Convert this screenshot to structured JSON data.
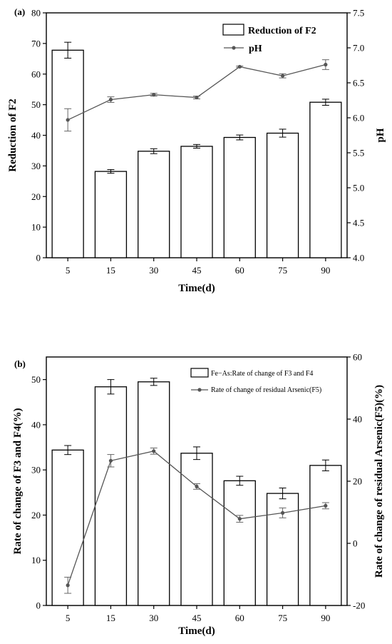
{
  "chart_data": [
    {
      "panel": "(a)",
      "type": "bar+line",
      "categories": [
        "5",
        "15",
        "30",
        "45",
        "60",
        "75",
        "90"
      ],
      "xlabel": "Time(d)",
      "bars": {
        "name": "Reduction of F2",
        "axis": "left",
        "values": [
          67.8,
          28.2,
          34.8,
          36.4,
          39.3,
          40.7,
          50.8
        ],
        "errors": [
          2.6,
          0.6,
          0.8,
          0.6,
          0.8,
          1.3,
          1.0
        ]
      },
      "line": {
        "name": "pH",
        "axis": "right",
        "values": [
          5.97,
          6.26,
          6.33,
          6.29,
          6.73,
          6.6,
          6.76
        ],
        "errors": [
          0.16,
          0.04,
          0.02,
          0.02,
          0.01,
          0.03,
          0.07
        ]
      },
      "left_axis": {
        "label": "Reduction of F2",
        "min": 0,
        "max": 80,
        "ticks": [
          "0",
          "10",
          "20",
          "30",
          "40",
          "50",
          "60",
          "70",
          "80"
        ]
      },
      "right_axis": {
        "label": "pH",
        "min": 4.0,
        "max": 7.5,
        "ticks": [
          "4.0",
          "4.5",
          "5.0",
          "5.5",
          "6.0",
          "6.5",
          "7.0",
          "7.5"
        ]
      },
      "legend_position": "top-right"
    },
    {
      "panel": "(b)",
      "type": "bar+line",
      "categories": [
        "5",
        "15",
        "30",
        "45",
        "60",
        "75",
        "90"
      ],
      "xlabel": "Time(d)",
      "bars": {
        "name": "Fe−As:Rate of change of F3 and F4",
        "axis": "left",
        "values": [
          34.4,
          48.4,
          49.5,
          33.7,
          27.6,
          24.8,
          31.0
        ],
        "errors": [
          1.0,
          1.6,
          0.8,
          1.4,
          1.0,
          1.2,
          1.2
        ]
      },
      "line": {
        "name": "Rate of change of residual Arsenic(F5)",
        "axis": "right",
        "values": [
          -13.5,
          26.6,
          29.7,
          18.3,
          7.9,
          9.8,
          12.1
        ],
        "errors": [
          2.6,
          2.0,
          1.0,
          0.9,
          1.1,
          1.6,
          1.0
        ]
      },
      "left_axis": {
        "label": "Rate of change of F3 and F4(%)",
        "min": 0,
        "max": 55,
        "ticks": [
          "0",
          "10",
          "20",
          "30",
          "40",
          "50"
        ]
      },
      "right_axis": {
        "label": "Rate of change of residual Arsenic(F5)(%)",
        "min": -20,
        "max": 60,
        "ticks": [
          "-20",
          "0",
          "20",
          "40",
          "60"
        ]
      },
      "legend_position": "top-right"
    }
  ]
}
